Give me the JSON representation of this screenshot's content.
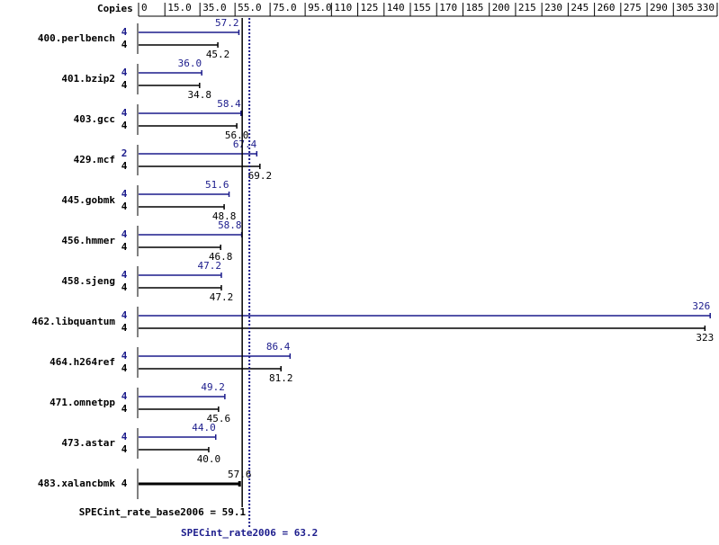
{
  "chart_data": {
    "type": "bar",
    "orientation": "horizontal",
    "axis_title": "Copies",
    "categories": [
      "400.perlbench",
      "401.bzip2",
      "403.gcc",
      "429.mcf",
      "445.gobmk",
      "456.hmmer",
      "458.sjeng",
      "462.libquantum",
      "464.h264ref",
      "471.omnetpp",
      "473.astar",
      "483.xalancbmk"
    ],
    "series": [
      {
        "color": "#1c1c8c",
        "copies": [
          4,
          4,
          4,
          2,
          4,
          4,
          4,
          4,
          4,
          4,
          4,
          null
        ],
        "values": [
          57.2,
          36.0,
          58.4,
          67.4,
          51.6,
          58.8,
          47.2,
          326,
          86.4,
          49.2,
          44.0,
          null
        ],
        "value_labels": [
          "57.2",
          "36.0",
          "58.4",
          "67.4",
          "51.6",
          "58.8",
          "47.2",
          "326",
          "86.4",
          "49.2",
          "44.0",
          null
        ]
      },
      {
        "color": "#000000",
        "copies": [
          4,
          4,
          4,
          4,
          4,
          4,
          4,
          4,
          4,
          4,
          4,
          4
        ],
        "values": [
          45.2,
          34.8,
          56.0,
          69.2,
          48.8,
          46.8,
          47.2,
          323,
          81.2,
          45.6,
          40.0,
          57.6
        ],
        "value_labels": [
          "45.2",
          "34.8",
          "56.0",
          "69.2",
          "48.8",
          "46.8",
          "47.2",
          "323",
          "81.2",
          "45.6",
          "40.0",
          "57.6"
        ]
      }
    ],
    "xlim": [
      0,
      330
    ],
    "xticks": [
      0,
      {
        "value": 15,
        "label": "15.0"
      },
      {
        "value": 35,
        "label": "35.0"
      },
      {
        "value": 55,
        "label": "55.0"
      },
      {
        "value": 75,
        "label": "75.0"
      },
      {
        "value": 95,
        "label": "95.0"
      },
      110,
      125,
      140,
      155,
      170,
      185,
      200,
      215,
      230,
      245,
      260,
      275,
      290,
      305,
      330
    ],
    "reference_lines": [
      {
        "text": "SPECint_rate_base2006 = 59.1",
        "value": 59.1,
        "color": "#000000",
        "style": "solid"
      },
      {
        "text": "SPECint_rate2006 = 63.2",
        "value": 63.2,
        "color": "#1c1c8c",
        "style": "dotted"
      }
    ]
  }
}
